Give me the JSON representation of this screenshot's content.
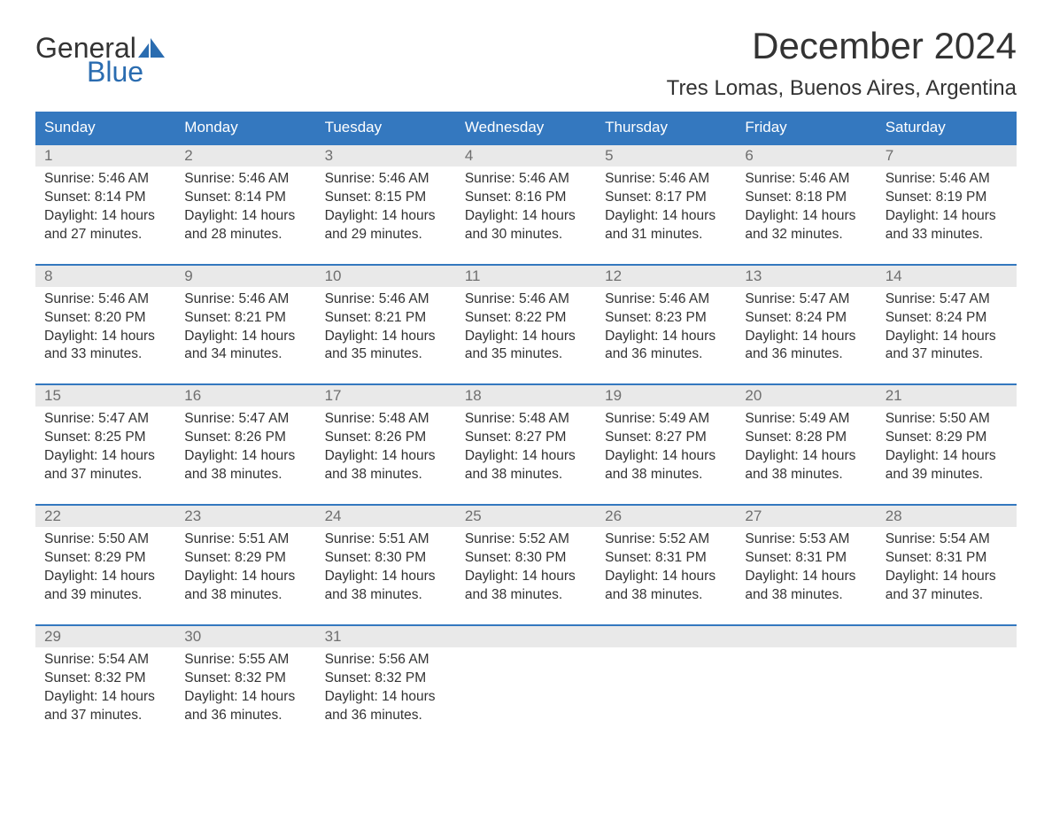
{
  "logo": {
    "text1": "General",
    "text2": "Blue",
    "accent_color": "#2a6cb0",
    "text_color": "#333333"
  },
  "title": "December 2024",
  "location": "Tres Lomas, Buenos Aires, Argentina",
  "colors": {
    "header_bg": "#3478bf",
    "header_text": "#ffffff",
    "daynum_bg": "#e9e9e9",
    "daynum_text": "#6f6f6f",
    "body_text": "#333333",
    "week_border": "#3478bf",
    "page_bg": "#ffffff"
  },
  "weekdays": [
    "Sunday",
    "Monday",
    "Tuesday",
    "Wednesday",
    "Thursday",
    "Friday",
    "Saturday"
  ],
  "weeks": [
    [
      {
        "num": "1",
        "sunrise": "Sunrise: 5:46 AM",
        "sunset": "Sunset: 8:14 PM",
        "daylight": "Daylight: 14 hours and 27 minutes."
      },
      {
        "num": "2",
        "sunrise": "Sunrise: 5:46 AM",
        "sunset": "Sunset: 8:14 PM",
        "daylight": "Daylight: 14 hours and 28 minutes."
      },
      {
        "num": "3",
        "sunrise": "Sunrise: 5:46 AM",
        "sunset": "Sunset: 8:15 PM",
        "daylight": "Daylight: 14 hours and 29 minutes."
      },
      {
        "num": "4",
        "sunrise": "Sunrise: 5:46 AM",
        "sunset": "Sunset: 8:16 PM",
        "daylight": "Daylight: 14 hours and 30 minutes."
      },
      {
        "num": "5",
        "sunrise": "Sunrise: 5:46 AM",
        "sunset": "Sunset: 8:17 PM",
        "daylight": "Daylight: 14 hours and 31 minutes."
      },
      {
        "num": "6",
        "sunrise": "Sunrise: 5:46 AM",
        "sunset": "Sunset: 8:18 PM",
        "daylight": "Daylight: 14 hours and 32 minutes."
      },
      {
        "num": "7",
        "sunrise": "Sunrise: 5:46 AM",
        "sunset": "Sunset: 8:19 PM",
        "daylight": "Daylight: 14 hours and 33 minutes."
      }
    ],
    [
      {
        "num": "8",
        "sunrise": "Sunrise: 5:46 AM",
        "sunset": "Sunset: 8:20 PM",
        "daylight": "Daylight: 14 hours and 33 minutes."
      },
      {
        "num": "9",
        "sunrise": "Sunrise: 5:46 AM",
        "sunset": "Sunset: 8:21 PM",
        "daylight": "Daylight: 14 hours and 34 minutes."
      },
      {
        "num": "10",
        "sunrise": "Sunrise: 5:46 AM",
        "sunset": "Sunset: 8:21 PM",
        "daylight": "Daylight: 14 hours and 35 minutes."
      },
      {
        "num": "11",
        "sunrise": "Sunrise: 5:46 AM",
        "sunset": "Sunset: 8:22 PM",
        "daylight": "Daylight: 14 hours and 35 minutes."
      },
      {
        "num": "12",
        "sunrise": "Sunrise: 5:46 AM",
        "sunset": "Sunset: 8:23 PM",
        "daylight": "Daylight: 14 hours and 36 minutes."
      },
      {
        "num": "13",
        "sunrise": "Sunrise: 5:47 AM",
        "sunset": "Sunset: 8:24 PM",
        "daylight": "Daylight: 14 hours and 36 minutes."
      },
      {
        "num": "14",
        "sunrise": "Sunrise: 5:47 AM",
        "sunset": "Sunset: 8:24 PM",
        "daylight": "Daylight: 14 hours and 37 minutes."
      }
    ],
    [
      {
        "num": "15",
        "sunrise": "Sunrise: 5:47 AM",
        "sunset": "Sunset: 8:25 PM",
        "daylight": "Daylight: 14 hours and 37 minutes."
      },
      {
        "num": "16",
        "sunrise": "Sunrise: 5:47 AM",
        "sunset": "Sunset: 8:26 PM",
        "daylight": "Daylight: 14 hours and 38 minutes."
      },
      {
        "num": "17",
        "sunrise": "Sunrise: 5:48 AM",
        "sunset": "Sunset: 8:26 PM",
        "daylight": "Daylight: 14 hours and 38 minutes."
      },
      {
        "num": "18",
        "sunrise": "Sunrise: 5:48 AM",
        "sunset": "Sunset: 8:27 PM",
        "daylight": "Daylight: 14 hours and 38 minutes."
      },
      {
        "num": "19",
        "sunrise": "Sunrise: 5:49 AM",
        "sunset": "Sunset: 8:27 PM",
        "daylight": "Daylight: 14 hours and 38 minutes."
      },
      {
        "num": "20",
        "sunrise": "Sunrise: 5:49 AM",
        "sunset": "Sunset: 8:28 PM",
        "daylight": "Daylight: 14 hours and 38 minutes."
      },
      {
        "num": "21",
        "sunrise": "Sunrise: 5:50 AM",
        "sunset": "Sunset: 8:29 PM",
        "daylight": "Daylight: 14 hours and 39 minutes."
      }
    ],
    [
      {
        "num": "22",
        "sunrise": "Sunrise: 5:50 AM",
        "sunset": "Sunset: 8:29 PM",
        "daylight": "Daylight: 14 hours and 39 minutes."
      },
      {
        "num": "23",
        "sunrise": "Sunrise: 5:51 AM",
        "sunset": "Sunset: 8:29 PM",
        "daylight": "Daylight: 14 hours and 38 minutes."
      },
      {
        "num": "24",
        "sunrise": "Sunrise: 5:51 AM",
        "sunset": "Sunset: 8:30 PM",
        "daylight": "Daylight: 14 hours and 38 minutes."
      },
      {
        "num": "25",
        "sunrise": "Sunrise: 5:52 AM",
        "sunset": "Sunset: 8:30 PM",
        "daylight": "Daylight: 14 hours and 38 minutes."
      },
      {
        "num": "26",
        "sunrise": "Sunrise: 5:52 AM",
        "sunset": "Sunset: 8:31 PM",
        "daylight": "Daylight: 14 hours and 38 minutes."
      },
      {
        "num": "27",
        "sunrise": "Sunrise: 5:53 AM",
        "sunset": "Sunset: 8:31 PM",
        "daylight": "Daylight: 14 hours and 38 minutes."
      },
      {
        "num": "28",
        "sunrise": "Sunrise: 5:54 AM",
        "sunset": "Sunset: 8:31 PM",
        "daylight": "Daylight: 14 hours and 37 minutes."
      }
    ],
    [
      {
        "num": "29",
        "sunrise": "Sunrise: 5:54 AM",
        "sunset": "Sunset: 8:32 PM",
        "daylight": "Daylight: 14 hours and 37 minutes."
      },
      {
        "num": "30",
        "sunrise": "Sunrise: 5:55 AM",
        "sunset": "Sunset: 8:32 PM",
        "daylight": "Daylight: 14 hours and 36 minutes."
      },
      {
        "num": "31",
        "sunrise": "Sunrise: 5:56 AM",
        "sunset": "Sunset: 8:32 PM",
        "daylight": "Daylight: 14 hours and 36 minutes."
      },
      null,
      null,
      null,
      null
    ]
  ]
}
